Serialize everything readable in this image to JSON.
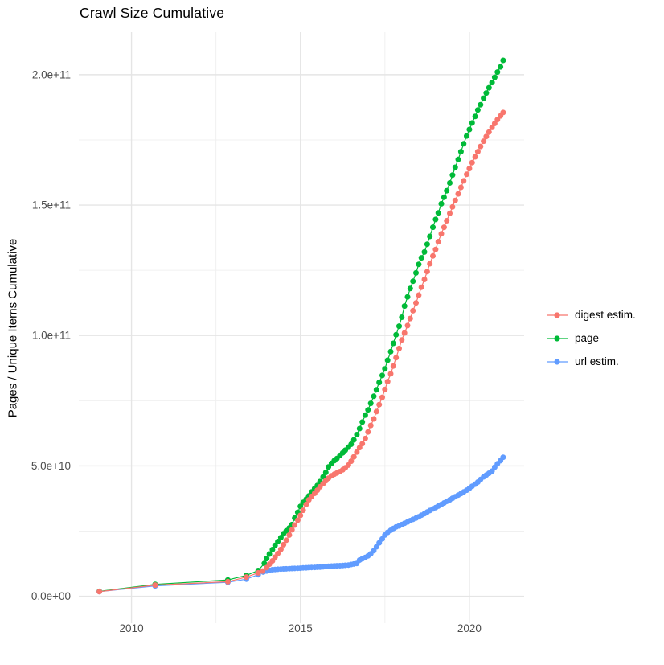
{
  "chart_data": {
    "type": "scatter",
    "title": "Crawl Size Cumulative",
    "xlabel": "",
    "ylabel": "Pages / Unique Items Cumulative",
    "y_unit": "items (values listed in billions, 1e9)",
    "grid": true,
    "legend_position": "right",
    "xlim": [
      2008.44,
      2021.62
    ],
    "ylim_e9": [
      -10.3,
      216.3
    ],
    "x_ticks": [
      {
        "value": 2010,
        "label": "2010"
      },
      {
        "value": 2015,
        "label": "2015"
      },
      {
        "value": 2020,
        "label": "2020"
      }
    ],
    "x_minor_ticks": [
      2012.5,
      2017.5
    ],
    "y_ticks": [
      {
        "value_e9": 0,
        "label": "0.0e+00"
      },
      {
        "value_e9": 50,
        "label": "5.0e+10"
      },
      {
        "value_e9": 100,
        "label": "1.0e+11"
      },
      {
        "value_e9": 150,
        "label": "1.5e+11"
      },
      {
        "value_e9": 200,
        "label": "2.0e+11"
      }
    ],
    "y_minor_ticks_e9": [
      25,
      75,
      125,
      175
    ],
    "draw_order": [
      "page",
      "url estim.",
      "digest estim."
    ],
    "series": [
      {
        "name": "digest estim.",
        "color": "#F8766D",
        "points_e9": [
          [
            2009.05,
            1.8
          ],
          [
            2010.7,
            4.3
          ],
          [
            2012.85,
            5.6
          ],
          [
            2013.4,
            7.4
          ],
          [
            2013.75,
            9.0
          ],
          [
            2013.88,
            9.7
          ],
          [
            2014.0,
            11.0
          ],
          [
            2014.08,
            12.3
          ],
          [
            2014.17,
            13.6
          ],
          [
            2014.25,
            15.0
          ],
          [
            2014.33,
            16.4
          ],
          [
            2014.42,
            18.0
          ],
          [
            2014.5,
            19.8
          ],
          [
            2014.58,
            21.5
          ],
          [
            2014.67,
            23.5
          ],
          [
            2014.75,
            25.5
          ],
          [
            2014.83,
            27.3
          ],
          [
            2014.92,
            29.2
          ],
          [
            2015.0,
            31.0
          ],
          [
            2015.08,
            33.0
          ],
          [
            2015.17,
            35.2
          ],
          [
            2015.25,
            37.0
          ],
          [
            2015.33,
            38.3
          ],
          [
            2015.42,
            39.5
          ],
          [
            2015.5,
            40.7
          ],
          [
            2015.58,
            42.0
          ],
          [
            2015.67,
            43.2
          ],
          [
            2015.75,
            44.3
          ],
          [
            2015.83,
            45.3
          ],
          [
            2015.92,
            46.2
          ],
          [
            2016.0,
            46.8
          ],
          [
            2016.08,
            47.3
          ],
          [
            2016.17,
            47.8
          ],
          [
            2016.25,
            48.5
          ],
          [
            2016.33,
            49.3
          ],
          [
            2016.42,
            50.3
          ],
          [
            2016.5,
            51.8
          ],
          [
            2016.58,
            53.5
          ],
          [
            2016.67,
            55.3
          ],
          [
            2016.75,
            57.0
          ],
          [
            2016.83,
            58.5
          ],
          [
            2016.92,
            60.5
          ],
          [
            2017.0,
            63.0
          ],
          [
            2017.08,
            65.5
          ],
          [
            2017.17,
            68.0
          ],
          [
            2017.25,
            70.8
          ],
          [
            2017.33,
            73.5
          ],
          [
            2017.42,
            76.3
          ],
          [
            2017.5,
            79.3
          ],
          [
            2017.58,
            82.3
          ],
          [
            2017.67,
            85.3
          ],
          [
            2017.75,
            88.3
          ],
          [
            2017.83,
            91.5
          ],
          [
            2017.92,
            95.0
          ],
          [
            2018.0,
            98.3
          ],
          [
            2018.08,
            101.0
          ],
          [
            2018.17,
            103.8
          ],
          [
            2018.25,
            106.5
          ],
          [
            2018.33,
            109.5
          ],
          [
            2018.42,
            112.5
          ],
          [
            2018.5,
            115.5
          ],
          [
            2018.58,
            118.5
          ],
          [
            2018.67,
            121.5
          ],
          [
            2018.75,
            124.5
          ],
          [
            2018.83,
            127.5
          ],
          [
            2018.92,
            130.5
          ],
          [
            2019.0,
            133.0
          ],
          [
            2019.08,
            136.0
          ],
          [
            2019.17,
            139.0
          ],
          [
            2019.25,
            141.5
          ],
          [
            2019.33,
            144.0
          ],
          [
            2019.42,
            146.8
          ],
          [
            2019.5,
            149.3
          ],
          [
            2019.58,
            151.8
          ],
          [
            2019.67,
            154.3
          ],
          [
            2019.75,
            156.8
          ],
          [
            2019.83,
            159.3
          ],
          [
            2019.92,
            161.8
          ],
          [
            2020.0,
            164.0
          ],
          [
            2020.08,
            166.3
          ],
          [
            2020.17,
            168.5
          ],
          [
            2020.25,
            170.5
          ],
          [
            2020.33,
            172.5
          ],
          [
            2020.42,
            174.5
          ],
          [
            2020.5,
            176.3
          ],
          [
            2020.58,
            178.0
          ],
          [
            2020.67,
            179.8
          ],
          [
            2020.75,
            181.3
          ],
          [
            2020.83,
            182.8
          ],
          [
            2020.92,
            184.2
          ],
          [
            2021.0,
            185.5
          ]
        ]
      },
      {
        "name": "page",
        "color": "#00BA38",
        "points_e9": [
          [
            2009.05,
            1.9
          ],
          [
            2010.7,
            4.6
          ],
          [
            2012.85,
            6.3
          ],
          [
            2013.4,
            8.0
          ],
          [
            2013.75,
            9.9
          ],
          [
            2013.93,
            12.6
          ],
          [
            2014.0,
            14.5
          ],
          [
            2014.08,
            16.2
          ],
          [
            2014.17,
            17.9
          ],
          [
            2014.25,
            19.5
          ],
          [
            2014.33,
            21.0
          ],
          [
            2014.42,
            22.5
          ],
          [
            2014.5,
            24.0
          ],
          [
            2014.58,
            25.1
          ],
          [
            2014.67,
            26.2
          ],
          [
            2014.75,
            27.5
          ],
          [
            2014.83,
            30.0
          ],
          [
            2014.92,
            32.2
          ],
          [
            2015.0,
            34.5
          ],
          [
            2015.08,
            36.0
          ],
          [
            2015.17,
            37.2
          ],
          [
            2015.25,
            38.5
          ],
          [
            2015.33,
            40.0
          ],
          [
            2015.42,
            41.3
          ],
          [
            2015.5,
            42.5
          ],
          [
            2015.58,
            44.0
          ],
          [
            2015.67,
            45.8
          ],
          [
            2015.75,
            47.5
          ],
          [
            2015.83,
            49.6
          ],
          [
            2015.92,
            51.0
          ],
          [
            2016.0,
            52.0
          ],
          [
            2016.08,
            52.8
          ],
          [
            2016.17,
            54.0
          ],
          [
            2016.25,
            55.0
          ],
          [
            2016.33,
            56.0
          ],
          [
            2016.42,
            57.2
          ],
          [
            2016.5,
            58.3
          ],
          [
            2016.58,
            60.0
          ],
          [
            2016.67,
            62.0
          ],
          [
            2016.75,
            64.3
          ],
          [
            2016.83,
            66.8
          ],
          [
            2016.92,
            69.5
          ],
          [
            2017.0,
            71.5
          ],
          [
            2017.08,
            74.0
          ],
          [
            2017.17,
            76.7
          ],
          [
            2017.25,
            79.2
          ],
          [
            2017.33,
            82.0
          ],
          [
            2017.42,
            84.7
          ],
          [
            2017.5,
            87.2
          ],
          [
            2017.58,
            90.5
          ],
          [
            2017.67,
            93.8
          ],
          [
            2017.75,
            97.0
          ],
          [
            2017.83,
            100.3
          ],
          [
            2017.92,
            103.6
          ],
          [
            2018.0,
            107.0
          ],
          [
            2018.08,
            111.3
          ],
          [
            2018.17,
            114.8
          ],
          [
            2018.25,
            118.0
          ],
          [
            2018.33,
            120.8
          ],
          [
            2018.42,
            124.0
          ],
          [
            2018.5,
            127.3
          ],
          [
            2018.58,
            129.8
          ],
          [
            2018.67,
            132.0
          ],
          [
            2018.75,
            135.0
          ],
          [
            2018.83,
            138.0
          ],
          [
            2018.92,
            141.5
          ],
          [
            2019.0,
            144.5
          ],
          [
            2019.08,
            147.0
          ],
          [
            2019.17,
            150.5
          ],
          [
            2019.25,
            153.0
          ],
          [
            2019.33,
            155.5
          ],
          [
            2019.42,
            158.5
          ],
          [
            2019.5,
            161.5
          ],
          [
            2019.58,
            164.5
          ],
          [
            2019.67,
            167.5
          ],
          [
            2019.75,
            170.5
          ],
          [
            2019.83,
            173.5
          ],
          [
            2019.92,
            176.5
          ],
          [
            2020.0,
            179.0
          ],
          [
            2020.08,
            181.5
          ],
          [
            2020.17,
            184.0
          ],
          [
            2020.25,
            186.5
          ],
          [
            2020.33,
            188.5
          ],
          [
            2020.42,
            191.0
          ],
          [
            2020.5,
            193.0
          ],
          [
            2020.58,
            195.0
          ],
          [
            2020.67,
            197.0
          ],
          [
            2020.75,
            199.0
          ],
          [
            2020.83,
            201.0
          ],
          [
            2020.92,
            203.0
          ],
          [
            2021.0,
            205.5
          ]
        ]
      },
      {
        "name": "url estim.",
        "color": "#619CFF",
        "points_e9": [
          [
            2009.05,
            1.8
          ],
          [
            2010.7,
            4.0
          ],
          [
            2012.85,
            5.4
          ],
          [
            2013.4,
            6.6
          ],
          [
            2013.75,
            8.3
          ],
          [
            2013.9,
            9.3
          ],
          [
            2014.0,
            9.7
          ],
          [
            2014.08,
            10.0
          ],
          [
            2014.17,
            10.2
          ],
          [
            2014.25,
            10.3
          ],
          [
            2014.33,
            10.4
          ],
          [
            2014.42,
            10.45
          ],
          [
            2014.5,
            10.5
          ],
          [
            2014.58,
            10.55
          ],
          [
            2014.67,
            10.6
          ],
          [
            2014.75,
            10.65
          ],
          [
            2014.83,
            10.7
          ],
          [
            2014.92,
            10.75
          ],
          [
            2015.0,
            10.8
          ],
          [
            2015.08,
            10.9
          ],
          [
            2015.17,
            10.95
          ],
          [
            2015.25,
            11.0
          ],
          [
            2015.33,
            11.05
          ],
          [
            2015.42,
            11.1
          ],
          [
            2015.5,
            11.15
          ],
          [
            2015.58,
            11.2
          ],
          [
            2015.67,
            11.3
          ],
          [
            2015.75,
            11.4
          ],
          [
            2015.83,
            11.5
          ],
          [
            2015.92,
            11.6
          ],
          [
            2016.0,
            11.65
          ],
          [
            2016.08,
            11.7
          ],
          [
            2016.17,
            11.75
          ],
          [
            2016.25,
            11.8
          ],
          [
            2016.33,
            11.9
          ],
          [
            2016.42,
            12.0
          ],
          [
            2016.5,
            12.2
          ],
          [
            2016.58,
            12.4
          ],
          [
            2016.67,
            12.6
          ],
          [
            2016.75,
            13.9
          ],
          [
            2016.83,
            14.4
          ],
          [
            2016.92,
            14.9
          ],
          [
            2017.0,
            15.5
          ],
          [
            2017.08,
            16.3
          ],
          [
            2017.17,
            17.5
          ],
          [
            2017.25,
            19.0
          ],
          [
            2017.33,
            20.5
          ],
          [
            2017.42,
            22.0
          ],
          [
            2017.5,
            23.5
          ],
          [
            2017.58,
            24.5
          ],
          [
            2017.67,
            25.3
          ],
          [
            2017.75,
            26.0
          ],
          [
            2017.83,
            26.6
          ],
          [
            2017.92,
            27.0
          ],
          [
            2018.0,
            27.5
          ],
          [
            2018.08,
            28.0
          ],
          [
            2018.17,
            28.5
          ],
          [
            2018.25,
            29.0
          ],
          [
            2018.33,
            29.5
          ],
          [
            2018.42,
            30.0
          ],
          [
            2018.5,
            30.5
          ],
          [
            2018.58,
            31.1
          ],
          [
            2018.67,
            31.7
          ],
          [
            2018.75,
            32.3
          ],
          [
            2018.83,
            32.9
          ],
          [
            2018.92,
            33.5
          ],
          [
            2019.0,
            34.0
          ],
          [
            2019.08,
            34.6
          ],
          [
            2019.17,
            35.2
          ],
          [
            2019.25,
            35.8
          ],
          [
            2019.33,
            36.4
          ],
          [
            2019.42,
            37.0
          ],
          [
            2019.5,
            37.6
          ],
          [
            2019.58,
            38.2
          ],
          [
            2019.67,
            38.8
          ],
          [
            2019.75,
            39.4
          ],
          [
            2019.83,
            40.0
          ],
          [
            2019.92,
            40.7
          ],
          [
            2020.0,
            41.4
          ],
          [
            2020.08,
            42.2
          ],
          [
            2020.17,
            43.0
          ],
          [
            2020.25,
            43.8
          ],
          [
            2020.33,
            44.8
          ],
          [
            2020.42,
            45.8
          ],
          [
            2020.5,
            46.5
          ],
          [
            2020.58,
            47.2
          ],
          [
            2020.67,
            48.0
          ],
          [
            2020.75,
            49.5
          ],
          [
            2020.83,
            50.8
          ],
          [
            2020.92,
            52.0
          ],
          [
            2021.0,
            53.3
          ]
        ]
      }
    ],
    "style": {
      "background": "#ffffff",
      "grid_major_color": "#e5e5e5",
      "grid_minor_color": "#f0f0f0",
      "tick_label_color": "#4d4d4d",
      "text_color": "#000000"
    }
  }
}
